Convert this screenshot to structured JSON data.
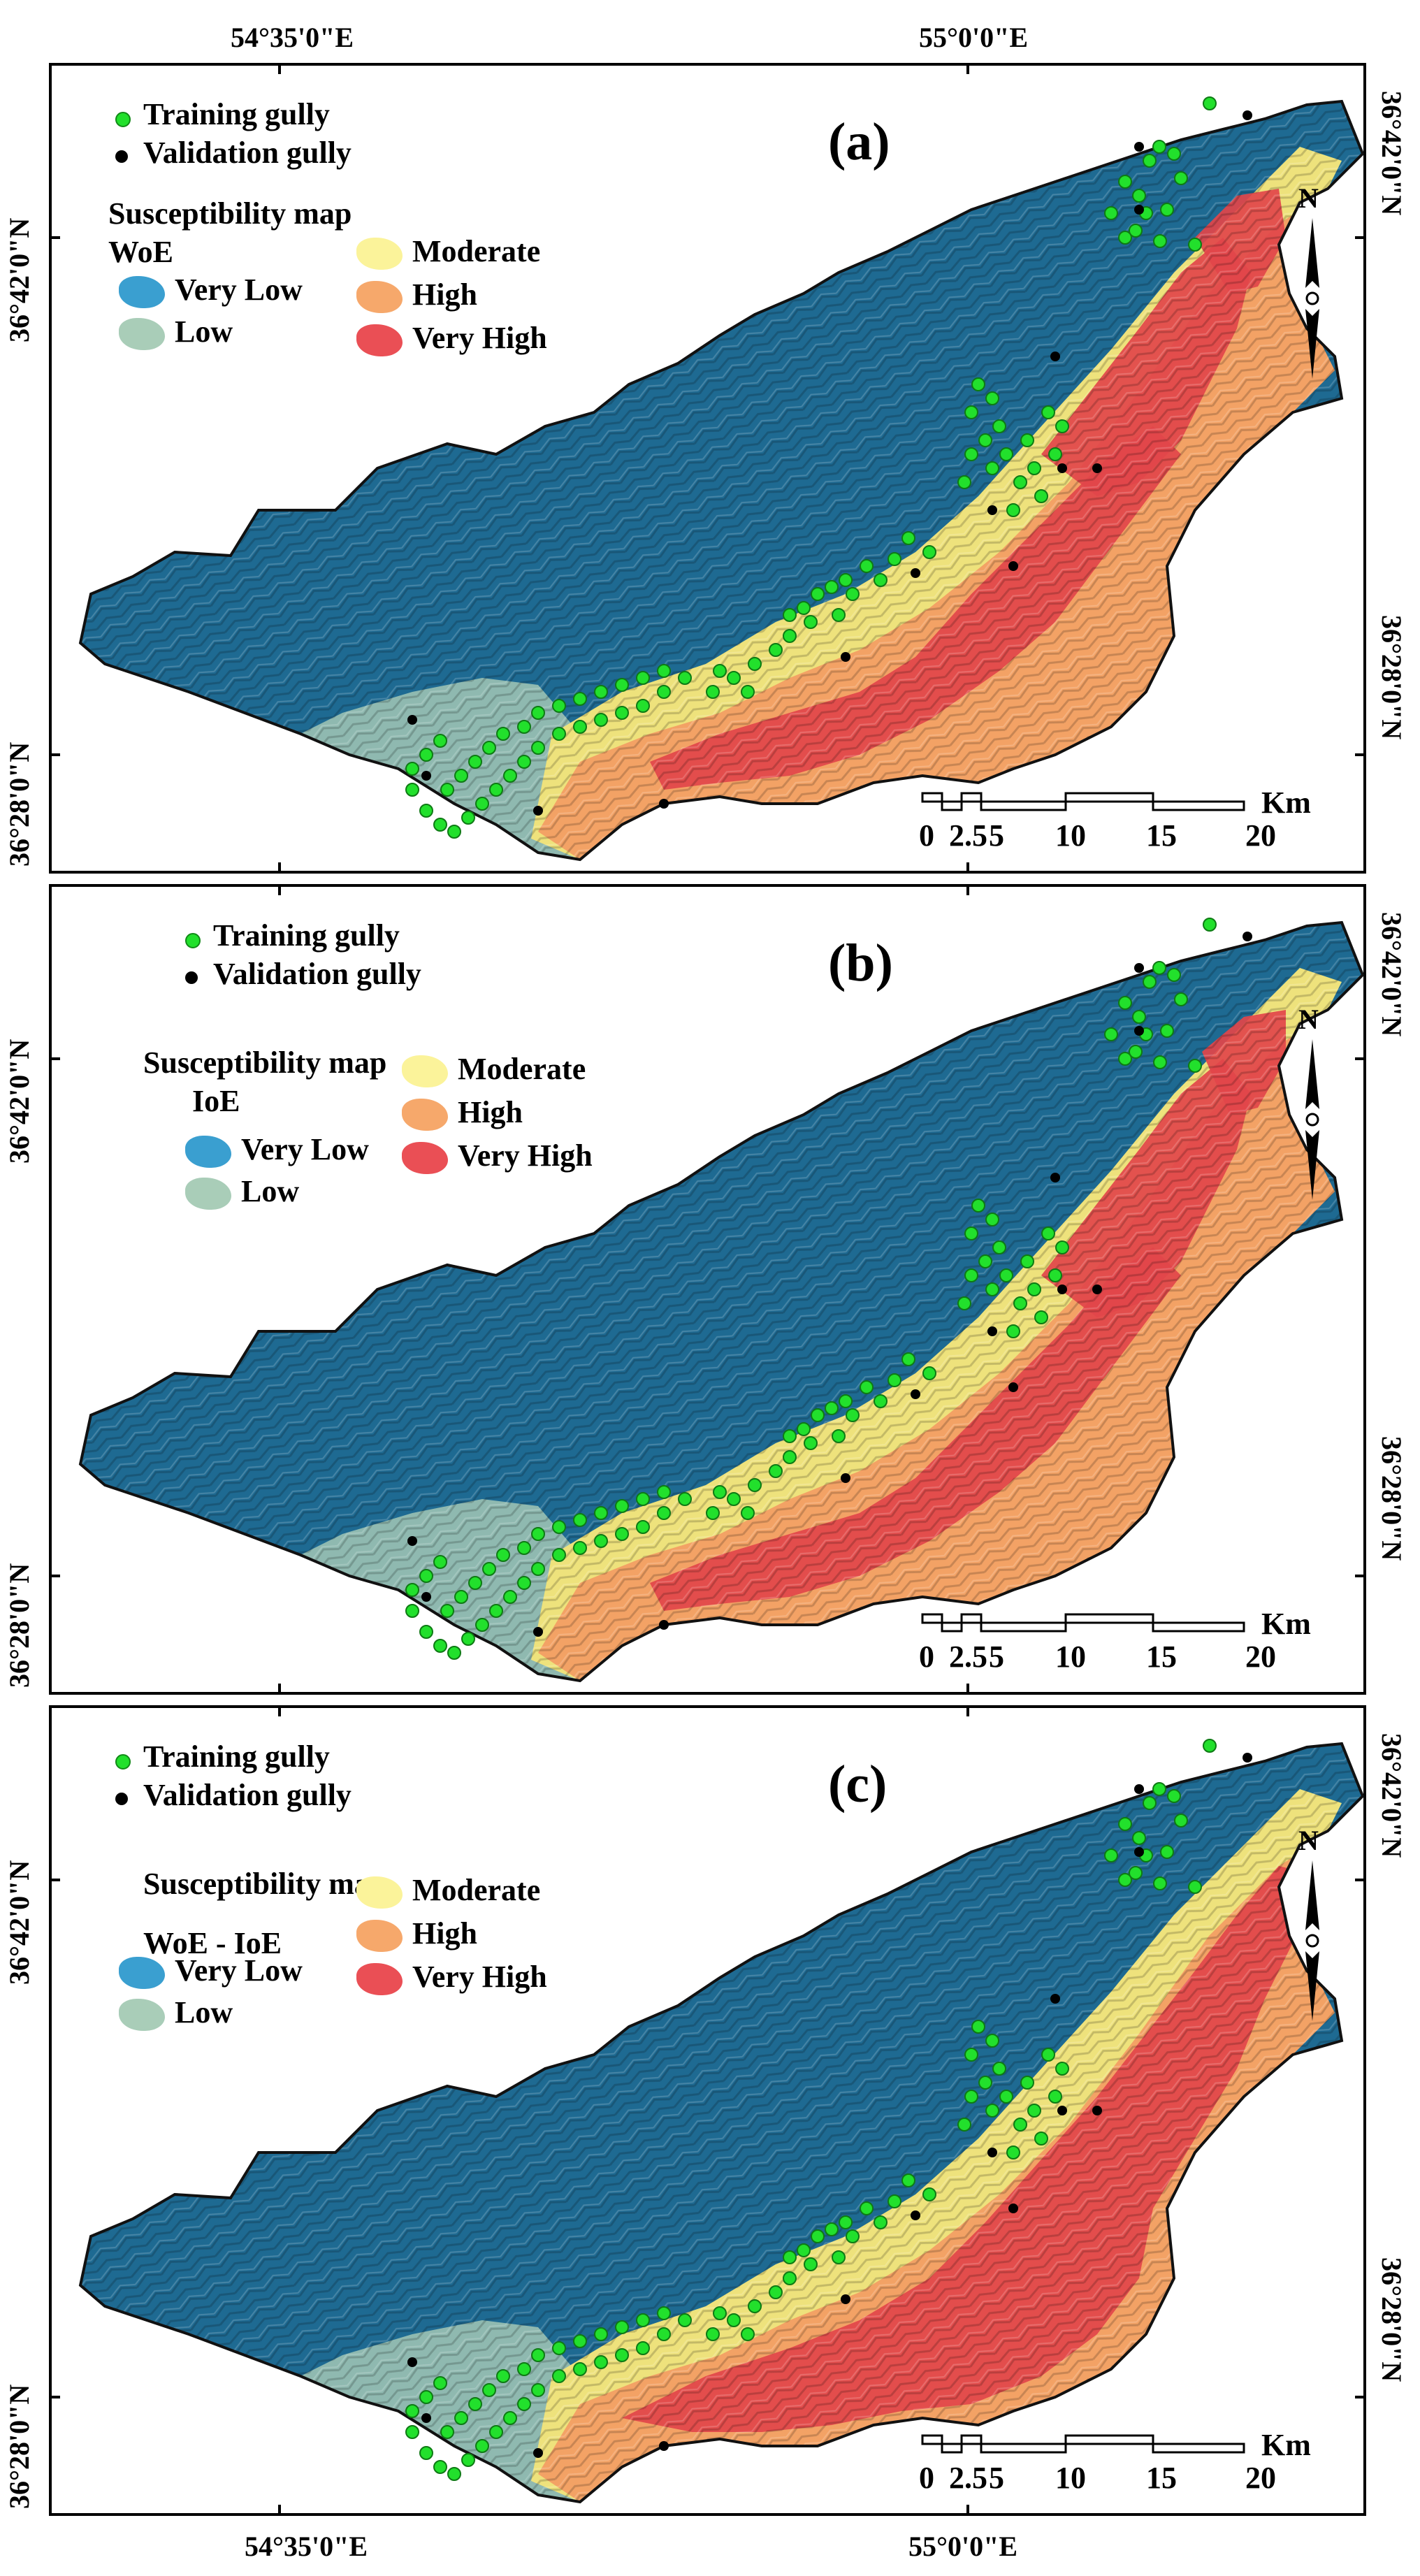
{
  "graticule": {
    "top_lon_left": "54°35'0\"E",
    "top_lon_right": "55°0'0\"E",
    "bottom_lon_left": "54°35'0\"E",
    "bottom_lon_right": "55°0'0\"E",
    "lat_upper": "36°42'0\"N",
    "lat_lower": "36°28'0\"N"
  },
  "legend": {
    "training": "Training gully",
    "validation": "Validation gully",
    "susceptibility_title": "Susceptibility map",
    "classes": [
      "Very Low",
      "Low",
      "Moderate",
      "High",
      "Very High"
    ],
    "class_colors": [
      "#3a9fd0",
      "#a9cdb8",
      "#fbf39a",
      "#f6a86b",
      "#ea4f55"
    ]
  },
  "panels": [
    {
      "label": "(a)",
      "method": "WoE"
    },
    {
      "label": "(b)",
      "method": "IoE"
    },
    {
      "label": "(c)",
      "method": "WoE - IoE"
    }
  ],
  "north": "N",
  "scale": {
    "ticks": [
      "0",
      "2.5",
      "5",
      "10",
      "15",
      "20"
    ],
    "unit": "Km"
  },
  "colors": {
    "very_low": "#1e6a92",
    "low": "#8fb9b0",
    "moderate": "#eee27c",
    "high": "#f3a265",
    "very_high": "#e2454a",
    "training_point": "#22e02c",
    "validation_point": "#000000"
  }
}
